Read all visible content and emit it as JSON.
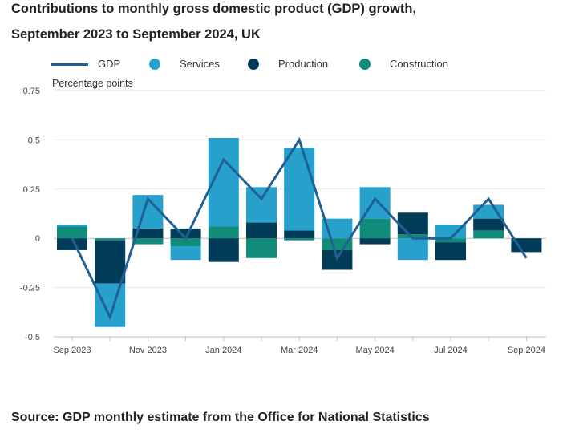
{
  "title_line1": "Contributions to monthly gross domestic product (GDP) growth,",
  "title_line2": "September 2023 to September 2024, UK",
  "source": "Source: GDP monthly estimate from the Office for National Statistics",
  "colors": {
    "gdp": "#206095",
    "services": "#27a0cc",
    "production": "#003c57",
    "construction": "#118c7b",
    "grid": "#e6e6e6",
    "axis": "#c0c0c0"
  },
  "chart_data": {
    "type": "bar",
    "stacked": true,
    "x": [
      "Sep 2023",
      "Oct 2023",
      "Nov 2023",
      "Dec 2023",
      "Jan 2024",
      "Feb 2024",
      "Mar 2024",
      "Apr 2024",
      "May 2024",
      "Jun 2024",
      "Jul 2024",
      "Aug 2024",
      "Sep 2024"
    ],
    "x_tick_labels": [
      "Sep 2023",
      "Nov 2023",
      "Jan 2024",
      "Mar 2024",
      "May 2024",
      "Jul 2024",
      "Sep 2024"
    ],
    "ylabel": "Percentage points",
    "ylim": [
      -0.5,
      0.75
    ],
    "y_ticks": [
      -0.5,
      -0.25,
      0,
      0.25,
      0.5,
      0.75
    ],
    "y_tick_labels": [
      "-0.5",
      "-0.25",
      "0",
      "0.25",
      "0.5",
      "0.75"
    ],
    "grid": true,
    "legend_position": "top",
    "series": [
      {
        "name": "Services",
        "kind": "bar",
        "values": [
          0.01,
          -0.22,
          0.17,
          -0.07,
          0.45,
          0.18,
          0.42,
          0.1,
          0.16,
          -0.11,
          0.07,
          0.07,
          0.0
        ]
      },
      {
        "name": "Production",
        "kind": "bar",
        "values": [
          -0.06,
          -0.22,
          0.05,
          0.05,
          -0.12,
          0.08,
          0.04,
          -0.1,
          -0.03,
          0.11,
          -0.09,
          0.06,
          -0.07
        ]
      },
      {
        "name": "Construction",
        "kind": "bar",
        "values": [
          0.06,
          -0.01,
          -0.03,
          -0.04,
          0.06,
          -0.1,
          -0.01,
          -0.06,
          0.1,
          0.02,
          -0.02,
          0.04,
          0.0
        ]
      },
      {
        "name": "GDP",
        "kind": "line",
        "values": [
          0.0,
          -0.4,
          0.2,
          0.0,
          0.4,
          0.2,
          0.5,
          -0.1,
          0.2,
          0.0,
          0.0,
          0.2,
          -0.1
        ]
      }
    ]
  }
}
